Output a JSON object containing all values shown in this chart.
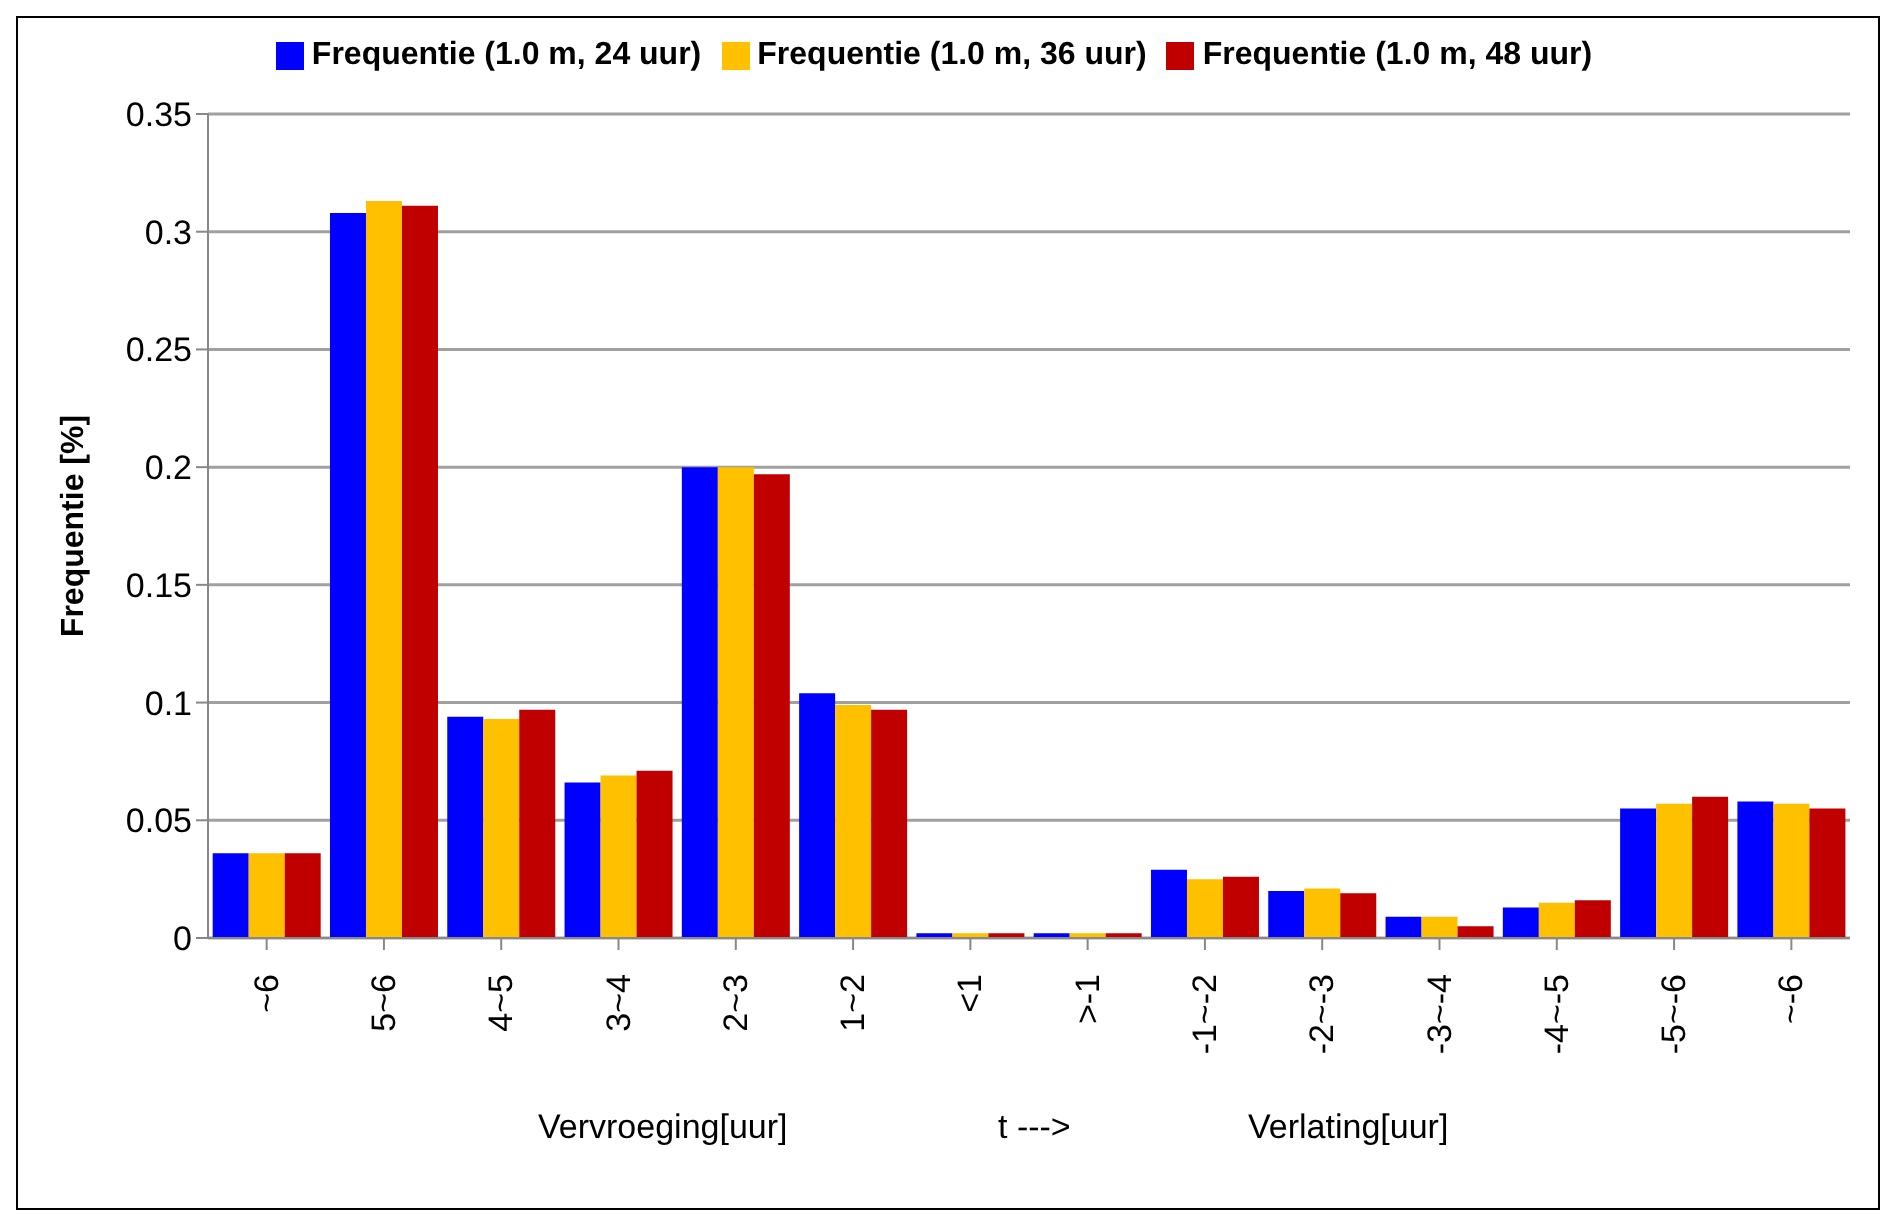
{
  "chart_data": {
    "type": "bar",
    "categories": [
      "~6",
      "5~6",
      "4~5",
      "3~4",
      "2~3",
      "1~2",
      "<1",
      ">-1",
      "-1~-2",
      "-2~-3",
      "-3~-4",
      "-4~-5",
      "-5~-6",
      "~-6"
    ],
    "series": [
      {
        "name": "Frequentie (1.0 m, 24 uur)",
        "color": "#0000ff",
        "values": [
          0.036,
          0.308,
          0.094,
          0.066,
          0.2,
          0.104,
          0.002,
          0.002,
          0.029,
          0.02,
          0.009,
          0.013,
          0.055,
          0.058
        ]
      },
      {
        "name": "Frequentie (1.0 m, 36 uur)",
        "color": "#ffc000",
        "values": [
          0.036,
          0.313,
          0.093,
          0.069,
          0.2,
          0.099,
          0.002,
          0.002,
          0.025,
          0.021,
          0.009,
          0.015,
          0.057,
          0.057
        ]
      },
      {
        "name": "Frequentie (1.0 m, 48 uur)",
        "color": "#c00000",
        "values": [
          0.036,
          0.311,
          0.097,
          0.071,
          0.197,
          0.097,
          0.002,
          0.002,
          0.026,
          0.019,
          0.005,
          0.016,
          0.06,
          0.055
        ]
      }
    ],
    "ylabel": "Frequentie [%]",
    "xlabel": "Vervroeging[uur]",
    "annotations": [
      "t --->",
      "Verlating[uur]"
    ],
    "ylim": [
      0,
      0.35
    ],
    "yticks": [
      0,
      0.05,
      0.1,
      0.15,
      0.2,
      0.25,
      0.3,
      0.35
    ],
    "grid": "y",
    "legend": "top"
  }
}
